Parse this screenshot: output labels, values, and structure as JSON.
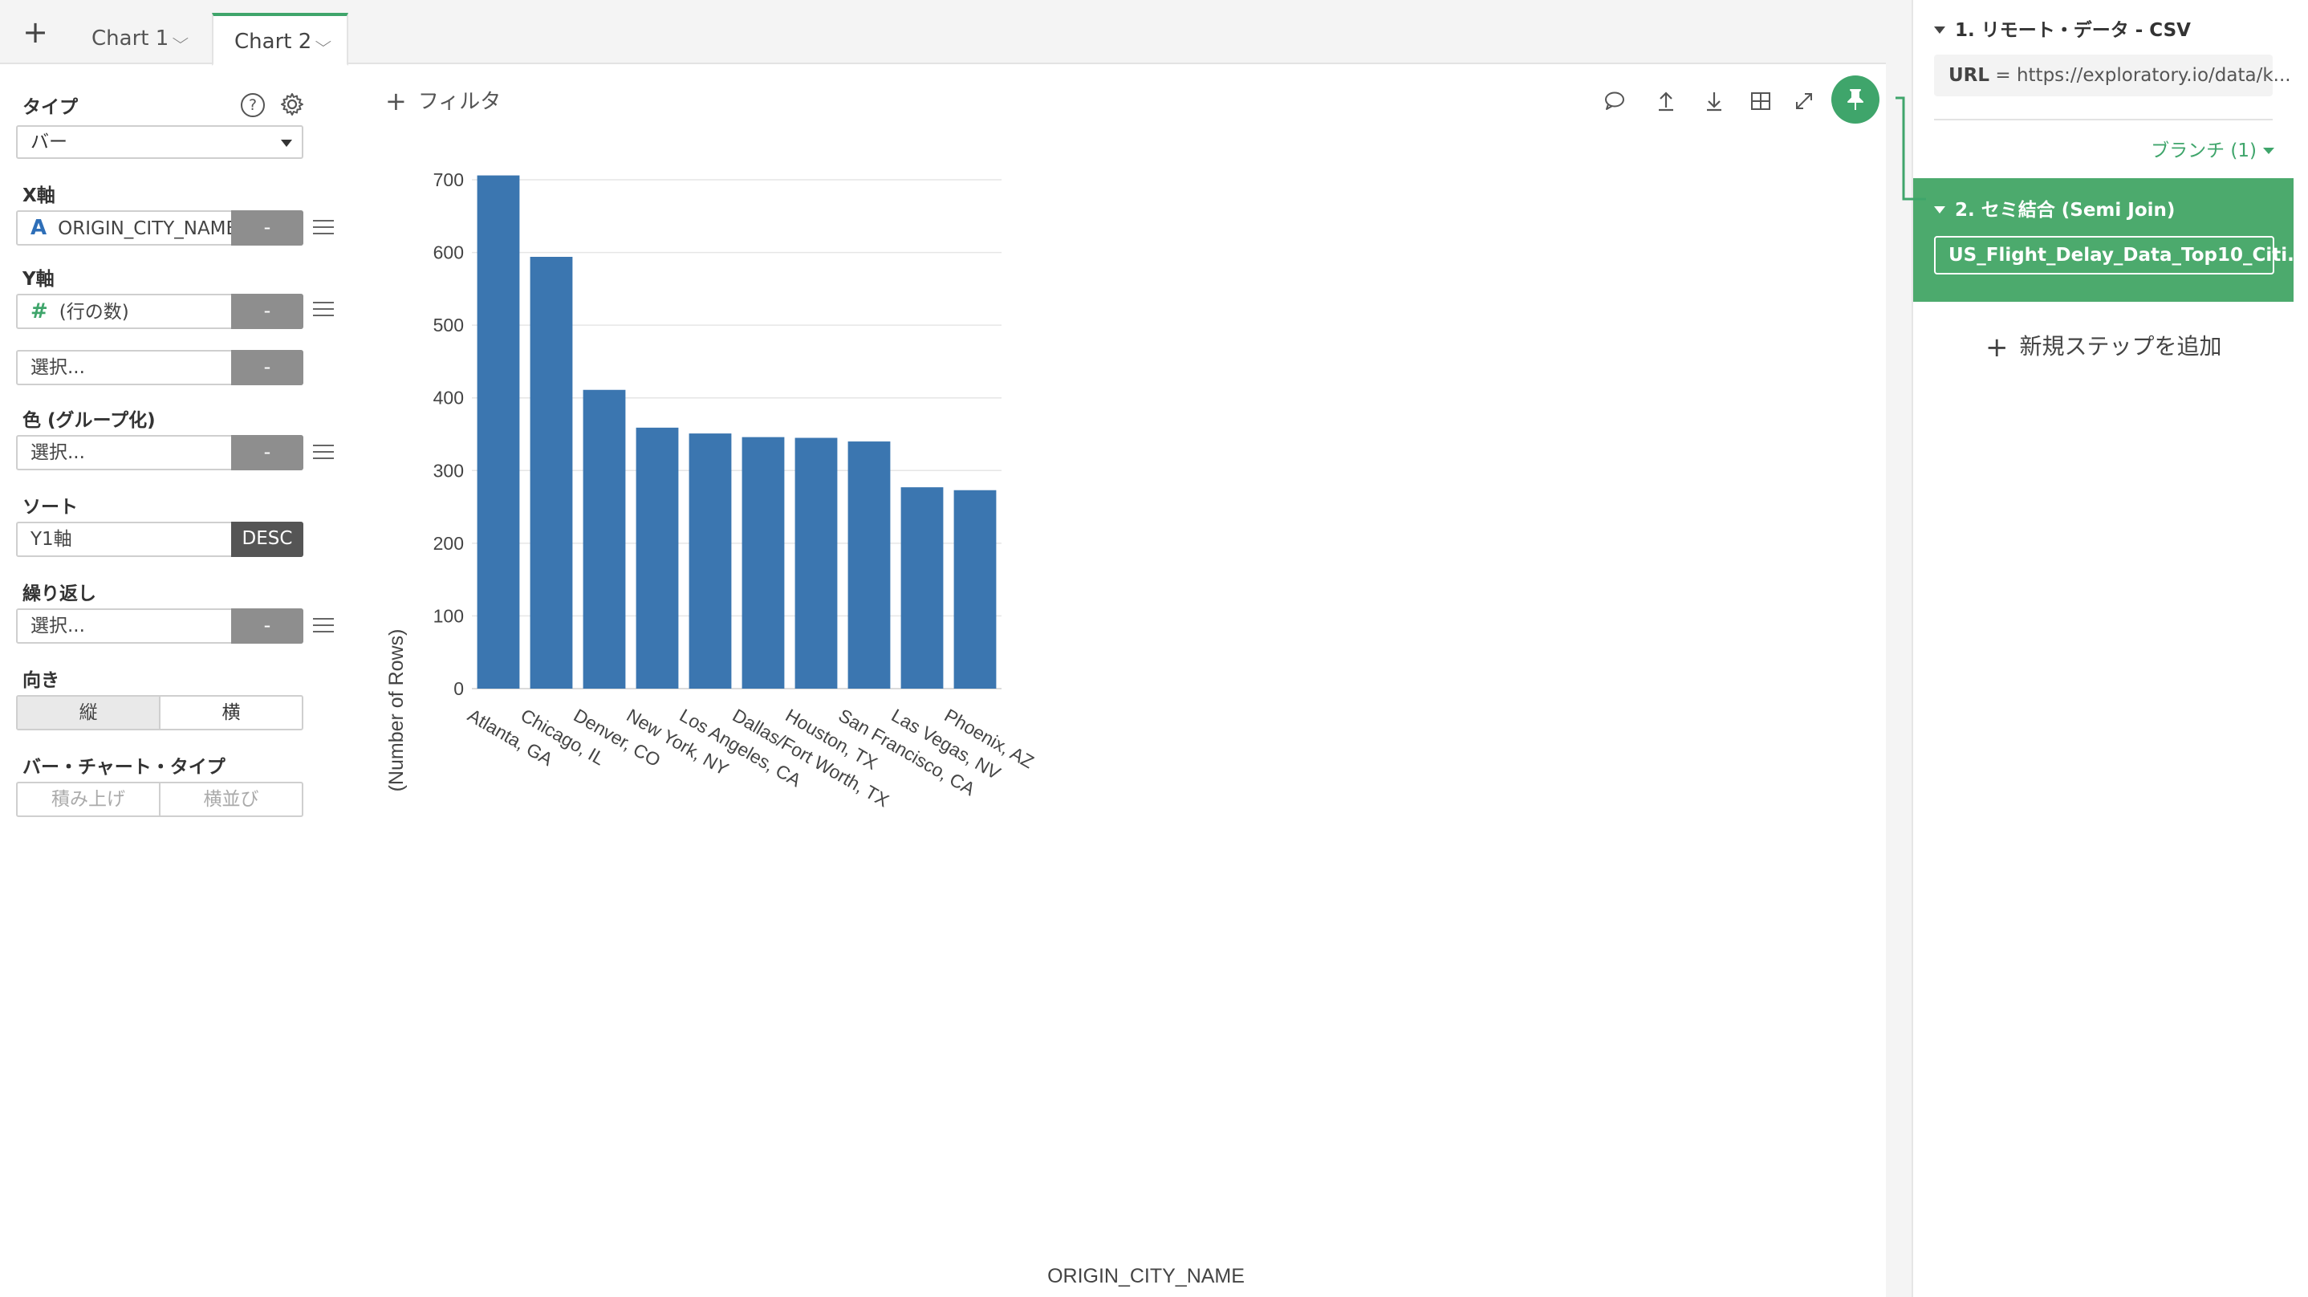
{
  "tabs": {
    "add_label": "+",
    "items": [
      {
        "label": "Chart 1"
      },
      {
        "label": "Chart 2"
      }
    ],
    "chevron": "⌵"
  },
  "config": {
    "type": {
      "label": "タイプ",
      "value": "バー",
      "help_icon": "?",
      "settings_icon": "gear-icon"
    },
    "x_axis": {
      "label": "X軸",
      "value": "ORIGIN_CITY_NAME",
      "type_icon": "A",
      "button": "-"
    },
    "y_axis": {
      "label": "Y軸",
      "value": "(行の数)",
      "type_icon": "#",
      "button": "-"
    },
    "y2": {
      "placeholder": "選択...",
      "button": "-"
    },
    "color": {
      "label": "色 (グループ化)",
      "placeholder": "選択...",
      "button": "-"
    },
    "sort": {
      "label": "ソート",
      "value": "Y1軸",
      "button": "DESC"
    },
    "repeat": {
      "label": "繰り返し",
      "placeholder": "選択...",
      "button": "-"
    },
    "orientation": {
      "label": "向き",
      "options": [
        "縦",
        "横"
      ],
      "selected": "縦"
    },
    "bar_type": {
      "label": "バー・チャート・タイプ",
      "options": [
        "積み上げ",
        "横並び"
      ]
    }
  },
  "toolbar": {
    "filter_label": "フィルタ",
    "filter_plus": "+"
  },
  "colors": {
    "bar": "#3b76b0",
    "accent": "#3fa56b",
    "step_active": "#4caa6d"
  },
  "chart_data": {
    "type": "bar",
    "title": "",
    "xlabel": "ORIGIN_CITY_NAME",
    "ylabel": "(Number of Rows)",
    "categories": [
      "Atlanta, GA",
      "Chicago, IL",
      "Denver, CO",
      "New York, NY",
      "Los Angeles, CA",
      "Dallas/Fort Worth, TX",
      "Houston, TX",
      "San Francisco, CA",
      "Las Vegas, NV",
      "Phoenix, AZ"
    ],
    "values": [
      706,
      594,
      411,
      359,
      351,
      346,
      345,
      340,
      277,
      273
    ],
    "ylim": [
      0,
      700
    ],
    "yticks": [
      0,
      100,
      200,
      300,
      400,
      500,
      600,
      700
    ],
    "grid": true,
    "legend": "none"
  },
  "steps": {
    "step1": {
      "title": "1. リモート・データ - CSV",
      "url_key": "URL",
      "url_eq": " = ",
      "url_value": "https://exploratory.io/data/k..."
    },
    "branch": "ブランチ (1)",
    "step2": {
      "title": "2. セミ結合 (Semi Join)",
      "value": "US_Flight_Delay_Data_Top10_Citi..."
    },
    "add_step": "新規ステップを追加",
    "add_plus": "+"
  }
}
